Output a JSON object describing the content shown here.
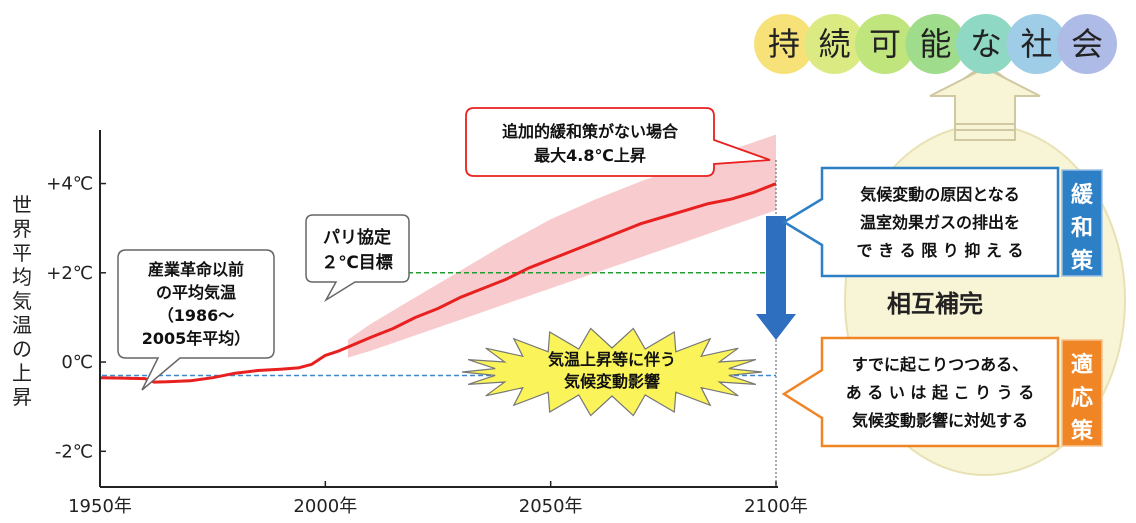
{
  "chart_data": {
    "type": "line",
    "ylabel": "世界平均気温の上昇",
    "x_ticks": [
      {
        "year": 1950,
        "label": "1950年"
      },
      {
        "year": 2000,
        "label": "2000年"
      },
      {
        "year": 2050,
        "label": "2050年"
      },
      {
        "year": 2100,
        "label": "2100年"
      }
    ],
    "y_ticks": [
      {
        "value": 4,
        "label": "+4℃"
      },
      {
        "value": 2,
        "label": "+2℃"
      },
      {
        "value": 0,
        "label": "0℃"
      },
      {
        "value": -2,
        "label": "-2℃"
      }
    ],
    "xlim": [
      1950,
      2100
    ],
    "ylim": [
      -2.8,
      5.2
    ],
    "series": [
      {
        "color": "#e8201f",
        "points": [
          [
            1950,
            -0.35
          ],
          [
            1955,
            -0.36
          ],
          [
            1960,
            -0.37
          ],
          [
            1962,
            -0.45
          ],
          [
            1965,
            -0.44
          ],
          [
            1970,
            -0.42
          ],
          [
            1975,
            -0.35
          ],
          [
            1980,
            -0.25
          ],
          [
            1985,
            -0.19
          ],
          [
            1990,
            -0.16
          ],
          [
            1994,
            -0.13
          ],
          [
            1997,
            -0.05
          ],
          [
            2000,
            0.15
          ],
          [
            2003,
            0.25
          ],
          [
            2006,
            0.38
          ],
          [
            2010,
            0.55
          ],
          [
            2015,
            0.75
          ],
          [
            2020,
            1.0
          ],
          [
            2025,
            1.2
          ],
          [
            2030,
            1.45
          ],
          [
            2035,
            1.65
          ],
          [
            2040,
            1.85
          ],
          [
            2045,
            2.1
          ],
          [
            2050,
            2.3
          ],
          [
            2055,
            2.5
          ],
          [
            2060,
            2.7
          ],
          [
            2065,
            2.9
          ],
          [
            2070,
            3.1
          ],
          [
            2075,
            3.25
          ],
          [
            2080,
            3.4
          ],
          [
            2085,
            3.55
          ],
          [
            2090,
            3.65
          ],
          [
            2095,
            3.8
          ],
          [
            2100,
            4.0
          ]
        ]
      }
    ],
    "band": {
      "color": "#f7c3c5",
      "points": [
        [
          2005,
          0.5,
          0.1
        ],
        [
          2010,
          0.85,
          0.25
        ],
        [
          2020,
          1.45,
          0.6
        ],
        [
          2030,
          2.05,
          0.95
        ],
        [
          2040,
          2.65,
          1.3
        ],
        [
          2050,
          3.2,
          1.65
        ],
        [
          2060,
          3.65,
          2.0
        ],
        [
          2070,
          4.05,
          2.35
        ],
        [
          2080,
          4.4,
          2.7
        ],
        [
          2090,
          4.75,
          3.05
        ],
        [
          2100,
          5.1,
          3.4
        ]
      ]
    },
    "reference_lines": [
      {
        "value": 2,
        "color": "#1f9e2e"
      },
      {
        "value": -0.3,
        "color": "#3a88d8"
      }
    ],
    "annotations": {
      "preindustrial": [
        "産業革命以前",
        "の平均気温",
        "（1986～",
        "2005年平均）"
      ],
      "paris": [
        "パリ協定",
        "２℃目標"
      ],
      "max_case": [
        "追加的緩和策がない場合",
        "最大4.8℃上昇"
      ],
      "impact": [
        "気温上昇等に伴う",
        "気候変動影響"
      ]
    }
  },
  "sustainable": {
    "chars": [
      "持",
      "続",
      "可",
      "能",
      "な",
      "社",
      "会"
    ],
    "colors": [
      "#f7e27a",
      "#dcea83",
      "#bfe57c",
      "#9fdc8b",
      "#8fd8c3",
      "#9fcce6",
      "#aebbe6"
    ]
  },
  "mitigation": {
    "label": [
      "緩",
      "和",
      "策"
    ],
    "text": [
      "気候変動の原因となる",
      "温室効果ガスの排出を",
      "で き る 限 り 抑 え る"
    ],
    "color": "#2d7fc6"
  },
  "mutual": "相互補完",
  "adaptation": {
    "label": [
      "適",
      "応",
      "策"
    ],
    "text": [
      "すでに起こりつつある、",
      "あ る い は 起 こ り う る",
      "気候変動影響に対処する"
    ],
    "color": "#f08526"
  }
}
